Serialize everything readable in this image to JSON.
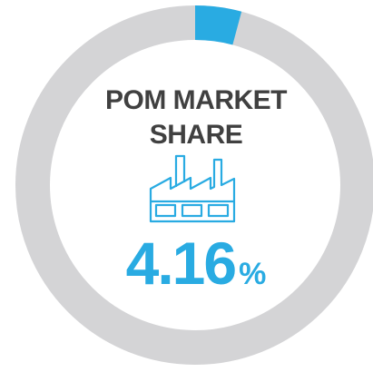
{
  "chart_data": {
    "type": "donut",
    "title": "POM MARKET SHARE",
    "values": [
      4.16
    ],
    "value_labels": [
      "4.16%"
    ],
    "color": "#29abe2",
    "track_color": "#d4d4d6"
  }
}
